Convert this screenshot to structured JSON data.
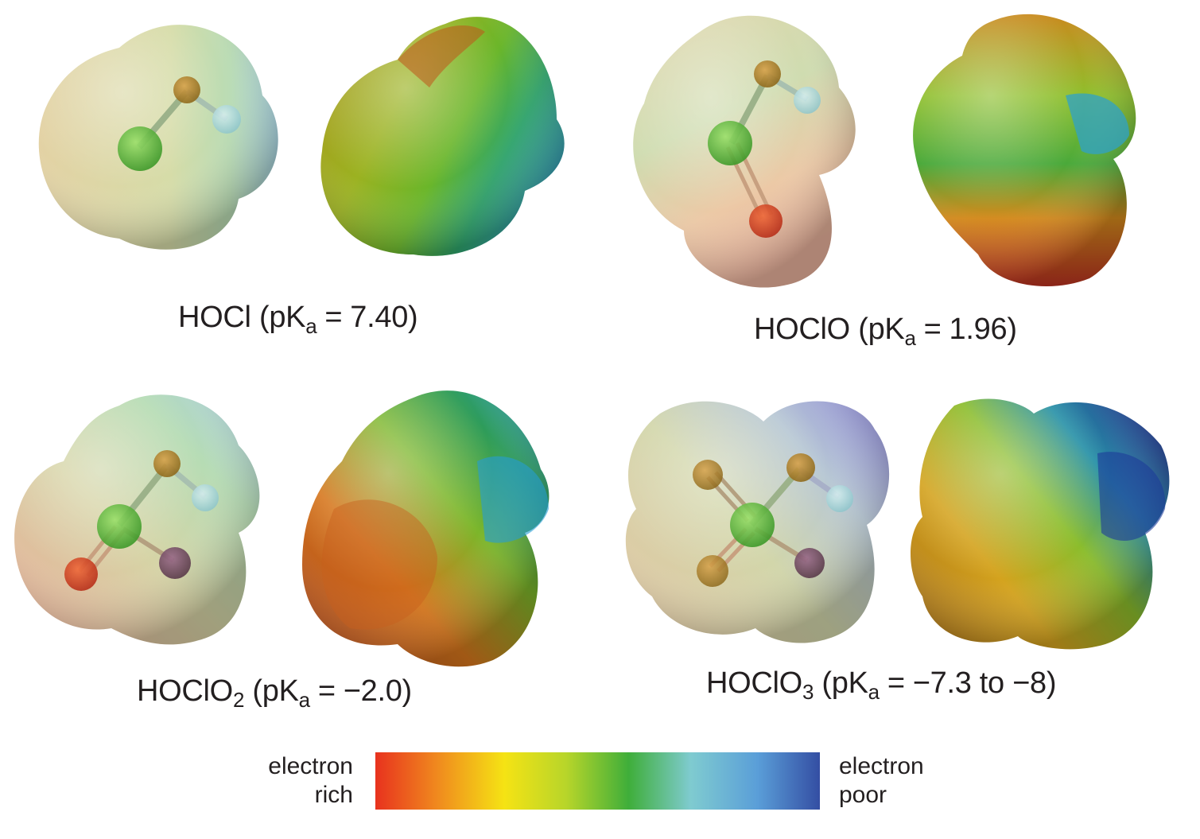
{
  "molecules": [
    {
      "formula": "HOCl",
      "formula_sub": "",
      "pka_symbol": "pK",
      "pka_sub": "a",
      "pka_value": "7.40"
    },
    {
      "formula": "HOClO",
      "formula_sub": "",
      "pka_symbol": "pK",
      "pka_sub": "a",
      "pka_value": "1.96"
    },
    {
      "formula": "HOClO",
      "formula_sub": "2",
      "pka_symbol": "pK",
      "pka_sub": "a",
      "pka_value": "−2.0"
    },
    {
      "formula": "HOClO",
      "formula_sub": "3",
      "pka_symbol": "pK",
      "pka_sub": "a",
      "pka_value": "−7.3 to −8"
    }
  ],
  "legend": {
    "left_line1": "electron",
    "left_line2": "rich",
    "right_line1": "electron",
    "right_line2": "poor",
    "gradient_colors": [
      "#e8321e",
      "#f08a1e",
      "#f5e314",
      "#b7d52a",
      "#3fae3a",
      "#7fcbd0",
      "#5a9ed8",
      "#344ea3"
    ]
  }
}
